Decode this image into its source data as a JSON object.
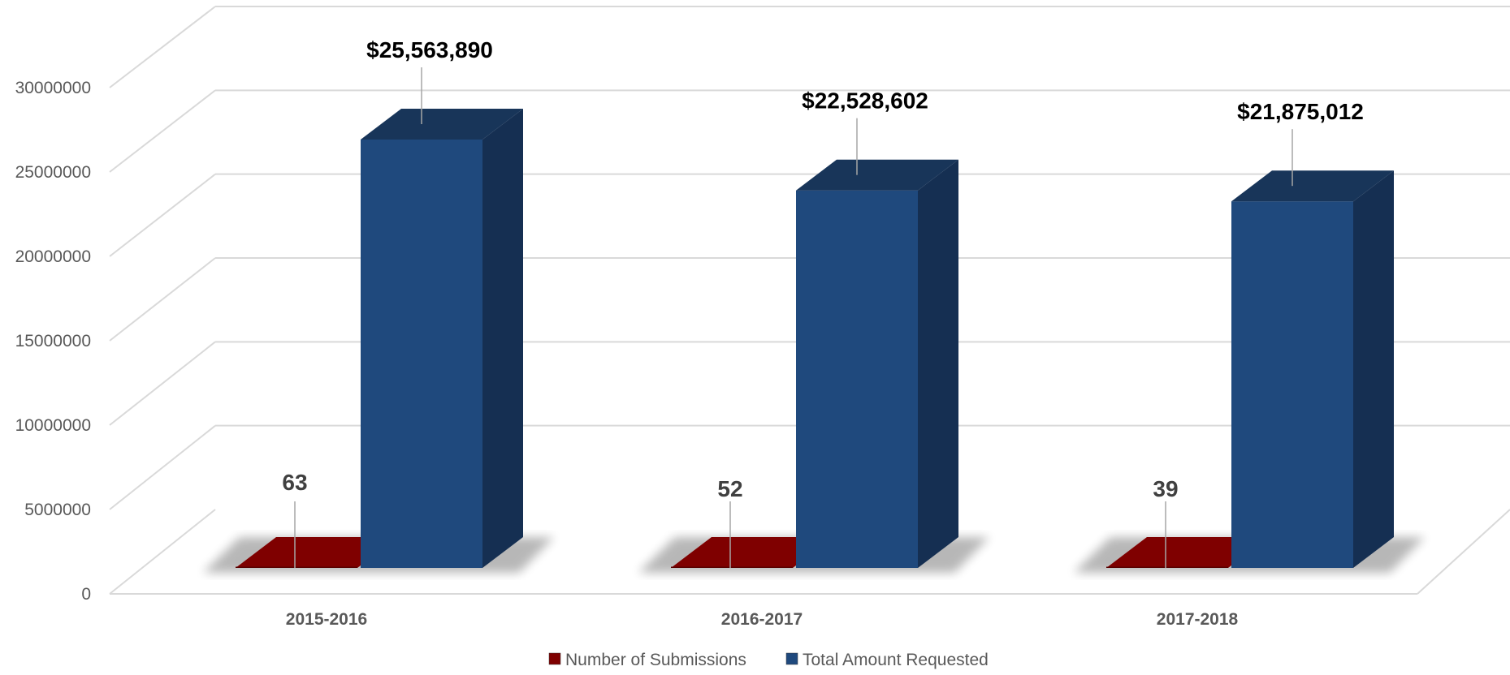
{
  "chart_data": {
    "type": "bar",
    "categories": [
      "2015-2016",
      "2016-2017",
      "2017-2018"
    ],
    "series": [
      {
        "name": "Number of Submissions",
        "values": [
          63,
          52,
          39
        ],
        "labels": [
          "63",
          "52",
          "39"
        ],
        "color": "#7f0000"
      },
      {
        "name": "Total Amount Requested",
        "values": [
          25563890,
          22528602,
          21875012
        ],
        "labels": [
          "$25,563,890",
          "$22,528,602",
          "$21,875,012"
        ],
        "color": "#1f497d"
      }
    ],
    "yticks": [
      "0",
      "5000000",
      "10000000",
      "15000000",
      "20000000",
      "25000000",
      "30000000"
    ],
    "ylim": [
      0,
      30000000
    ],
    "grid": true,
    "legend": "bottom",
    "title": "",
    "xlabel": "",
    "ylabel": ""
  }
}
